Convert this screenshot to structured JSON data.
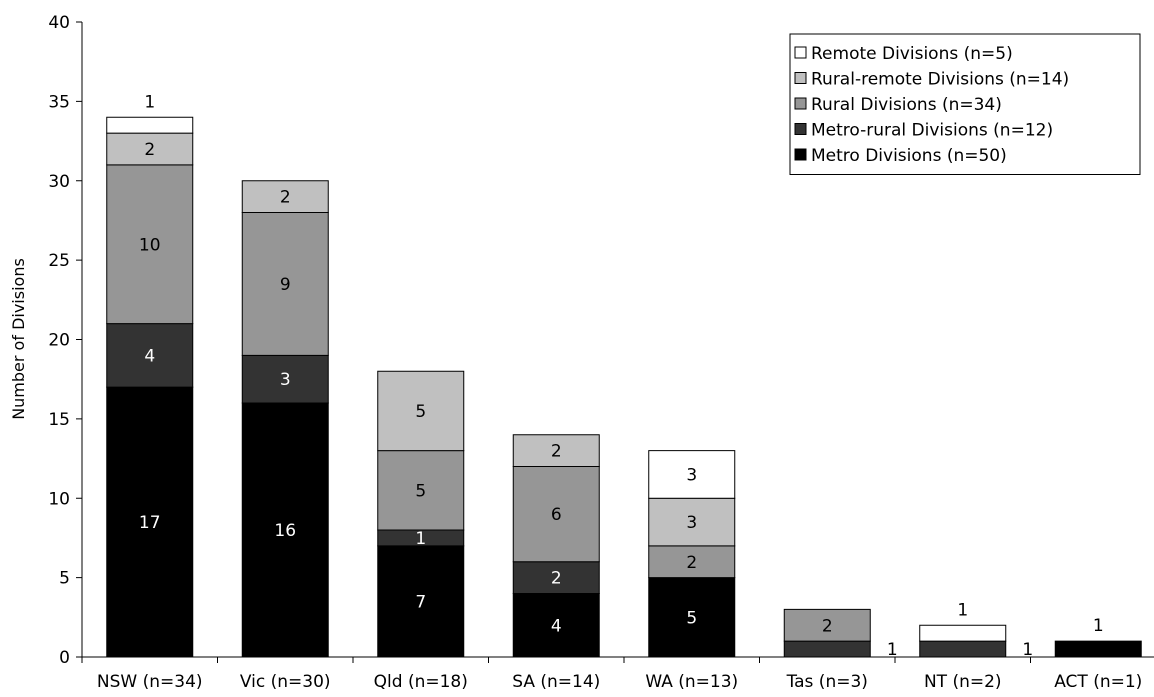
{
  "chart_data": {
    "type": "bar",
    "stacked": true,
    "title": "",
    "xlabel": "",
    "ylabel": "Number of Divisions",
    "ylim": [
      0,
      40
    ],
    "yticks": [
      0,
      5,
      10,
      15,
      20,
      25,
      30,
      35,
      40
    ],
    "grid": false,
    "legend_position": "top-right",
    "categories": [
      "NSW (n=34)",
      "Vic (n=30)",
      "Qld (n=18)",
      "SA (n=14)",
      "WA (n=13)",
      "Tas (n=3)",
      "NT (n=2)",
      "ACT (n=1)"
    ],
    "series": [
      {
        "name": "Metro Divisions (n=50)",
        "color": "#000000",
        "label_color": "#ffffff",
        "values": [
          17,
          16,
          7,
          4,
          5,
          0,
          0,
          1
        ]
      },
      {
        "name": "Metro-rural Divisions (n=12)",
        "color": "#333333",
        "label_color": "#ffffff",
        "values": [
          4,
          3,
          1,
          2,
          0,
          1,
          1,
          0
        ]
      },
      {
        "name": "Rural Divisions (n=34)",
        "color": "#969696",
        "label_color": "#000000",
        "values": [
          10,
          9,
          5,
          6,
          2,
          2,
          0,
          0
        ]
      },
      {
        "name": "Rural-remote Divisions (n=14)",
        "color": "#c0c0c0",
        "label_color": "#000000",
        "values": [
          2,
          2,
          5,
          2,
          3,
          0,
          0,
          0
        ]
      },
      {
        "name": "Remote Divisions (n=5)",
        "color": "#ffffff",
        "label_color": "#000000",
        "values": [
          1,
          0,
          0,
          0,
          3,
          0,
          1,
          0
        ]
      }
    ],
    "data_labels": [
      {
        "category": "NSW (n=34)",
        "series": "Metro Divisions (n=50)",
        "text": "17"
      },
      {
        "category": "NSW (n=34)",
        "series": "Metro-rural Divisions (n=12)",
        "text": "4"
      },
      {
        "category": "NSW (n=34)",
        "series": "Rural Divisions (n=34)",
        "text": "10"
      },
      {
        "category": "NSW (n=34)",
        "series": "Rural-remote Divisions (n=14)",
        "text": "2"
      },
      {
        "category": "NSW (n=34)",
        "series": "Remote Divisions (n=5)",
        "text": "1",
        "outside": true
      },
      {
        "category": "Vic (n=30)",
        "series": "Metro Divisions (n=50)",
        "text": "16"
      },
      {
        "category": "Vic (n=30)",
        "series": "Metro-rural Divisions (n=12)",
        "text": "3"
      },
      {
        "category": "Vic (n=30)",
        "series": "Rural Divisions (n=34)",
        "text": "9"
      },
      {
        "category": "Vic (n=30)",
        "series": "Rural-remote Divisions (n=14)",
        "text": "2"
      },
      {
        "category": "Qld (n=18)",
        "series": "Metro Divisions (n=50)",
        "text": "7"
      },
      {
        "category": "Qld (n=18)",
        "series": "Metro-rural Divisions (n=12)",
        "text": "1"
      },
      {
        "category": "Qld (n=18)",
        "series": "Rural Divisions (n=34)",
        "text": "5"
      },
      {
        "category": "Qld (n=18)",
        "series": "Rural-remote Divisions (n=14)",
        "text": "5"
      },
      {
        "category": "SA (n=14)",
        "series": "Metro Divisions (n=50)",
        "text": "4"
      },
      {
        "category": "SA (n=14)",
        "series": "Metro-rural Divisions (n=12)",
        "text": "2"
      },
      {
        "category": "SA (n=14)",
        "series": "Rural Divisions (n=34)",
        "text": "6"
      },
      {
        "category": "SA (n=14)",
        "series": "Rural-remote Divisions (n=14)",
        "text": "2"
      },
      {
        "category": "WA (n=13)",
        "series": "Metro Divisions (n=50)",
        "text": "5"
      },
      {
        "category": "WA (n=13)",
        "series": "Rural Divisions (n=34)",
        "text": "2"
      },
      {
        "category": "WA (n=13)",
        "series": "Rural-remote Divisions (n=14)",
        "text": "3"
      },
      {
        "category": "WA (n=13)",
        "series": "Remote Divisions (n=5)",
        "text": "3"
      },
      {
        "category": "Tas (n=3)",
        "series": "Metro-rural Divisions (n=12)",
        "text": "1",
        "side": true
      },
      {
        "category": "Tas (n=3)",
        "series": "Rural Divisions (n=34)",
        "text": "2"
      },
      {
        "category": "NT (n=2)",
        "series": "Metro-rural Divisions (n=12)",
        "text": "1",
        "side": true
      },
      {
        "category": "NT (n=2)",
        "series": "Remote Divisions (n=5)",
        "text": "1",
        "outside": true
      },
      {
        "category": "ACT (n=1)",
        "series": "Metro Divisions (n=50)",
        "text": "1",
        "outside": true
      }
    ]
  }
}
